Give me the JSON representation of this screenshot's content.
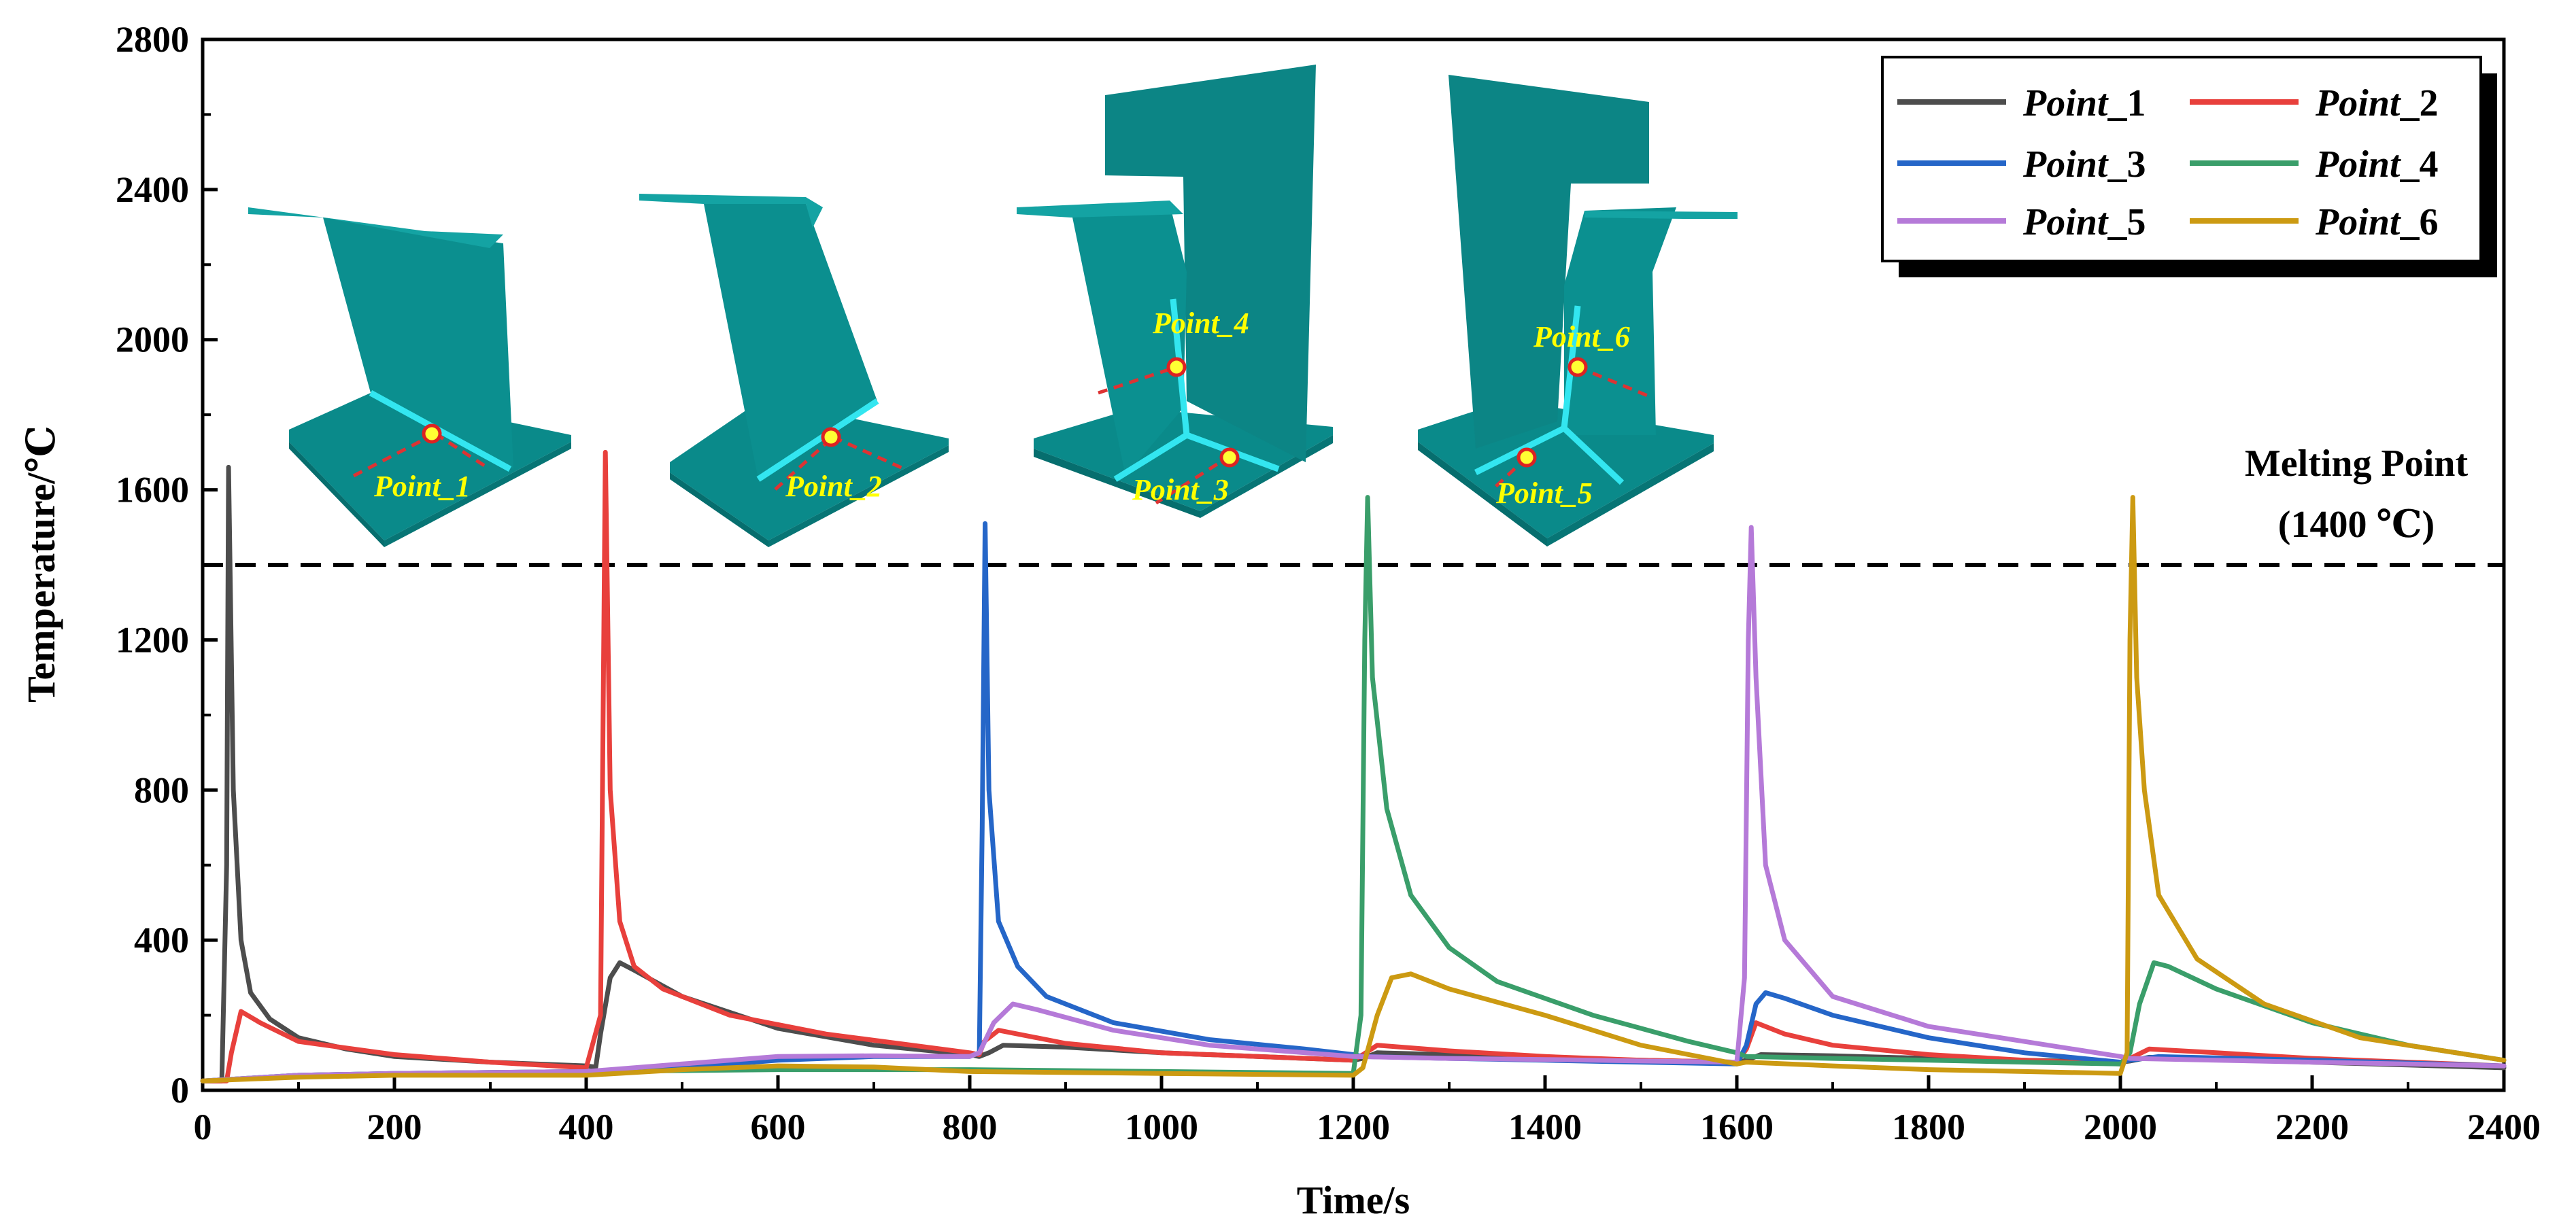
{
  "chart_data": {
    "type": "line",
    "title": "",
    "xlabel": "Time/s",
    "ylabel": "Temperature/℃",
    "xlim": [
      0,
      2400
    ],
    "ylim": [
      0,
      2800
    ],
    "xticks": [
      0,
      200,
      400,
      600,
      800,
      1000,
      1200,
      1400,
      1600,
      1800,
      2000,
      2200,
      2400
    ],
    "yticks": [
      0,
      400,
      800,
      1200,
      1600,
      2000,
      2400,
      2800
    ],
    "xtick_labels": [
      "0",
      "200",
      "400",
      "600",
      "800",
      "1000",
      "1200",
      "1400",
      "1600",
      "1800",
      "2000",
      "2200",
      "2400"
    ],
    "ytick_labels": [
      "0",
      "400",
      "800",
      "1200",
      "1600",
      "2000",
      "2400",
      "2800"
    ],
    "grid": false,
    "legend_position": "top-right",
    "reference_line": {
      "y": 1400,
      "style": "dashed",
      "label_line1": "Melting Point",
      "label_line2": "(1400 ℃)"
    },
    "series": [
      {
        "name_italic": "Point",
        "name_suffix": "_1",
        "color": "#4d4d4d",
        "x": [
          0,
          20,
          25,
          27,
          32,
          40,
          50,
          70,
          100,
          150,
          200,
          300,
          400,
          410,
          415,
          425,
          435,
          450,
          500,
          600,
          700,
          800,
          810,
          820,
          835,
          900,
          1000,
          1100,
          1200,
          1210,
          1225,
          1300,
          1400,
          1500,
          1600,
          1610,
          1625,
          1700,
          1800,
          1900,
          2000,
          2010,
          2030,
          2200,
          2400
        ],
        "y": [
          25,
          25,
          600,
          1660,
          800,
          400,
          260,
          190,
          140,
          110,
          90,
          75,
          65,
          62,
          150,
          300,
          340,
          320,
          250,
          165,
          120,
          95,
          90,
          100,
          120,
          115,
          100,
          90,
          80,
          85,
          100,
          95,
          85,
          80,
          75,
          80,
          95,
          92,
          85,
          80,
          75,
          78,
          88,
          75,
          60
        ]
      },
      {
        "name_italic": "Point",
        "name_suffix": "_2",
        "color": "#e8403c",
        "x": [
          0,
          25,
          30,
          40,
          60,
          100,
          200,
          300,
          400,
          415,
          420,
          425,
          435,
          450,
          480,
          550,
          650,
          800,
          810,
          815,
          830,
          900,
          1000,
          1100,
          1200,
          1210,
          1225,
          1300,
          1400,
          1500,
          1600,
          1610,
          1620,
          1650,
          1700,
          1800,
          1900,
          2000,
          2010,
          2030,
          2100,
          2200,
          2400
        ],
        "y": [
          25,
          25,
          100,
          210,
          180,
          130,
          95,
          75,
          60,
          200,
          1700,
          800,
          450,
          330,
          270,
          200,
          150,
          100,
          95,
          130,
          160,
          125,
          100,
          90,
          80,
          95,
          120,
          105,
          90,
          80,
          75,
          110,
          180,
          150,
          120,
          95,
          80,
          70,
          85,
          110,
          100,
          85,
          65
        ]
      },
      {
        "name_italic": "Point",
        "name_suffix": "_3",
        "color": "#2566c8",
        "x": [
          0,
          100,
          200,
          400,
          500,
          600,
          700,
          800,
          810,
          813,
          816,
          820,
          830,
          850,
          880,
          950,
          1050,
          1150,
          1200,
          1210,
          1300,
          1400,
          1500,
          1600,
          1610,
          1620,
          1630,
          1650,
          1700,
          1800,
          1900,
          2000,
          2010,
          2040,
          2200,
          2400
        ],
        "y": [
          25,
          40,
          45,
          50,
          60,
          80,
          90,
          90,
          100,
          700,
          1510,
          800,
          450,
          330,
          250,
          180,
          135,
          110,
          95,
          90,
          85,
          80,
          75,
          70,
          120,
          230,
          260,
          245,
          200,
          140,
          100,
          75,
          80,
          90,
          80,
          65
        ]
      },
      {
        "name_italic": "Point",
        "name_suffix": "_4",
        "color": "#3a9e6a",
        "x": [
          0,
          100,
          200,
          400,
          600,
          800,
          1000,
          1200,
          1208,
          1212,
          1215,
          1220,
          1235,
          1260,
          1300,
          1350,
          1450,
          1550,
          1600,
          1610,
          1700,
          1800,
          1900,
          2000,
          2010,
          2020,
          2035,
          2050,
          2100,
          2200,
          2300,
          2400
        ],
        "y": [
          25,
          40,
          45,
          50,
          55,
          55,
          50,
          45,
          200,
          1200,
          1580,
          1100,
          750,
          520,
          380,
          290,
          200,
          130,
          100,
          90,
          85,
          80,
          75,
          70,
          100,
          230,
          340,
          330,
          270,
          180,
          120,
          80
        ]
      },
      {
        "name_italic": "Point",
        "name_suffix": "_5",
        "color": "#b57ad8",
        "x": [
          0,
          100,
          200,
          400,
          500,
          600,
          700,
          800,
          810,
          825,
          845,
          870,
          950,
          1050,
          1150,
          1200,
          1300,
          1400,
          1500,
          1600,
          1608,
          1612,
          1615,
          1620,
          1630,
          1650,
          1700,
          1800,
          1900,
          2000,
          2010,
          2100,
          2200,
          2400
        ],
        "y": [
          25,
          40,
          45,
          50,
          70,
          90,
          92,
          90,
          100,
          180,
          230,
          215,
          160,
          120,
          100,
          90,
          85,
          82,
          78,
          75,
          300,
          1200,
          1500,
          1100,
          600,
          400,
          250,
          170,
          130,
          90,
          85,
          80,
          75,
          65
        ]
      },
      {
        "name_italic": "Point",
        "name_suffix": "_6",
        "color": "#cc9a12",
        "x": [
          0,
          100,
          200,
          400,
          500,
          600,
          700,
          800,
          1000,
          1200,
          1210,
          1225,
          1240,
          1260,
          1300,
          1400,
          1500,
          1600,
          1610,
          1700,
          1800,
          2000,
          2007,
          2010,
          2013,
          2017,
          2025,
          2040,
          2080,
          2150,
          2250,
          2400
        ],
        "y": [
          25,
          35,
          40,
          40,
          55,
          65,
          62,
          50,
          45,
          40,
          60,
          200,
          300,
          310,
          270,
          200,
          120,
          70,
          75,
          65,
          55,
          45,
          100,
          1200,
          1580,
          1100,
          800,
          520,
          350,
          230,
          140,
          80
        ]
      }
    ]
  },
  "insets": [
    {
      "label": "Point_1"
    },
    {
      "label": "Point_2"
    },
    {
      "label": "Point_4",
      "label2": "Point_3"
    },
    {
      "label": "Point_6",
      "label2": "Point_5"
    }
  ]
}
